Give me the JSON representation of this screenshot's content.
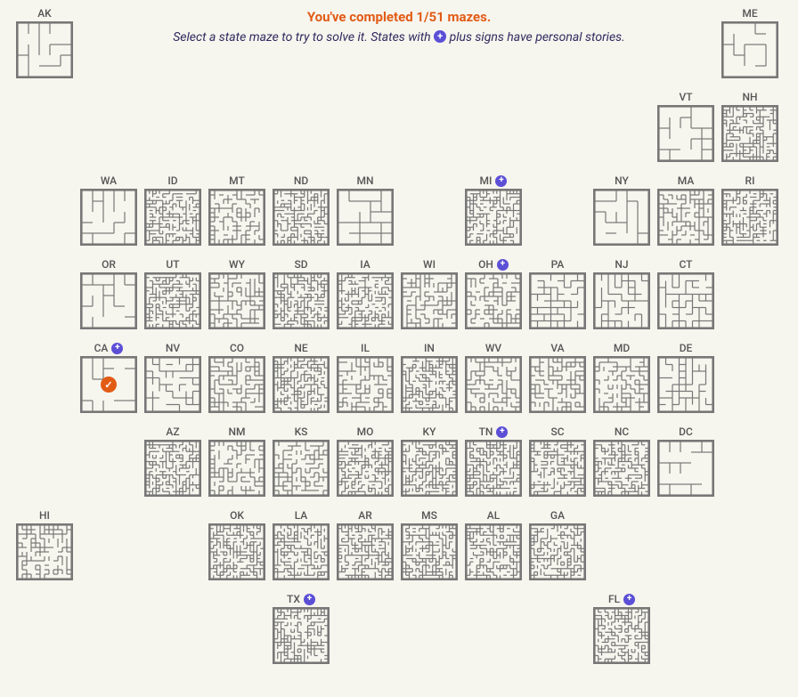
{
  "header": {
    "progress_text": "You've completed 1/51 mazes.",
    "progress_completed": 1,
    "progress_total": 51,
    "instruction_before": "Select a state maze to try to solve it. States with ",
    "instruction_after": " plus signs have personal stories."
  },
  "colors": {
    "background": "#f6f5ee",
    "progress": "#e25b15",
    "instruction": "#2f2a5e",
    "plus_badge": "#5b4fd6",
    "check_badge": "#e25b15",
    "maze_border": "#777777",
    "label": "#555555"
  },
  "maze_density_levels": {
    "sparse": 5,
    "medium": 8,
    "dense": 12,
    "very_dense": 16
  },
  "states": [
    {
      "code": "AK",
      "row": 1,
      "col": 1,
      "plus": false,
      "completed": false,
      "density": "sparse"
    },
    {
      "code": "ME",
      "row": 1,
      "col": 12,
      "plus": false,
      "completed": false,
      "density": "sparse"
    },
    {
      "code": "VT",
      "row": 2,
      "col": 11,
      "plus": false,
      "completed": false,
      "density": "sparse"
    },
    {
      "code": "NH",
      "row": 2,
      "col": 12,
      "plus": false,
      "completed": false,
      "density": "very_dense"
    },
    {
      "code": "WA",
      "row": 3,
      "col": 2,
      "plus": false,
      "completed": false,
      "density": "sparse"
    },
    {
      "code": "ID",
      "row": 3,
      "col": 3,
      "plus": false,
      "completed": false,
      "density": "very_dense"
    },
    {
      "code": "MT",
      "row": 3,
      "col": 4,
      "plus": false,
      "completed": false,
      "density": "dense"
    },
    {
      "code": "ND",
      "row": 3,
      "col": 5,
      "plus": false,
      "completed": false,
      "density": "very_dense"
    },
    {
      "code": "MN",
      "row": 3,
      "col": 6,
      "plus": false,
      "completed": false,
      "density": "sparse"
    },
    {
      "code": "MI",
      "row": 3,
      "col": 8,
      "plus": true,
      "completed": false,
      "density": "very_dense"
    },
    {
      "code": "NY",
      "row": 3,
      "col": 10,
      "plus": false,
      "completed": false,
      "density": "sparse"
    },
    {
      "code": "MA",
      "row": 3,
      "col": 11,
      "plus": false,
      "completed": false,
      "density": "dense"
    },
    {
      "code": "RI",
      "row": 3,
      "col": 12,
      "plus": false,
      "completed": false,
      "density": "very_dense"
    },
    {
      "code": "OR",
      "row": 4,
      "col": 2,
      "plus": false,
      "completed": false,
      "density": "sparse"
    },
    {
      "code": "UT",
      "row": 4,
      "col": 3,
      "plus": false,
      "completed": false,
      "density": "very_dense"
    },
    {
      "code": "WY",
      "row": 4,
      "col": 4,
      "plus": false,
      "completed": false,
      "density": "dense"
    },
    {
      "code": "SD",
      "row": 4,
      "col": 5,
      "plus": false,
      "completed": false,
      "density": "very_dense"
    },
    {
      "code": "IA",
      "row": 4,
      "col": 6,
      "plus": false,
      "completed": false,
      "density": "very_dense"
    },
    {
      "code": "WI",
      "row": 4,
      "col": 7,
      "plus": false,
      "completed": false,
      "density": "dense"
    },
    {
      "code": "OH",
      "row": 4,
      "col": 8,
      "plus": true,
      "completed": false,
      "density": "dense"
    },
    {
      "code": "PA",
      "row": 4,
      "col": 9,
      "plus": false,
      "completed": false,
      "density": "medium"
    },
    {
      "code": "NJ",
      "row": 4,
      "col": 10,
      "plus": false,
      "completed": false,
      "density": "medium"
    },
    {
      "code": "CT",
      "row": 4,
      "col": 11,
      "plus": false,
      "completed": false,
      "density": "medium"
    },
    {
      "code": "CA",
      "row": 5,
      "col": 2,
      "plus": true,
      "completed": true,
      "density": "sparse"
    },
    {
      "code": "NV",
      "row": 5,
      "col": 3,
      "plus": false,
      "completed": false,
      "density": "medium"
    },
    {
      "code": "CO",
      "row": 5,
      "col": 4,
      "plus": false,
      "completed": false,
      "density": "dense"
    },
    {
      "code": "NE",
      "row": 5,
      "col": 5,
      "plus": false,
      "completed": false,
      "density": "very_dense"
    },
    {
      "code": "IL",
      "row": 5,
      "col": 6,
      "plus": false,
      "completed": false,
      "density": "dense"
    },
    {
      "code": "IN",
      "row": 5,
      "col": 7,
      "plus": false,
      "completed": false,
      "density": "very_dense"
    },
    {
      "code": "WV",
      "row": 5,
      "col": 8,
      "plus": false,
      "completed": false,
      "density": "dense"
    },
    {
      "code": "VA",
      "row": 5,
      "col": 9,
      "plus": false,
      "completed": false,
      "density": "dense"
    },
    {
      "code": "MD",
      "row": 5,
      "col": 10,
      "plus": false,
      "completed": false,
      "density": "dense"
    },
    {
      "code": "DE",
      "row": 5,
      "col": 11,
      "plus": false,
      "completed": false,
      "density": "medium"
    },
    {
      "code": "AZ",
      "row": 6,
      "col": 3,
      "plus": false,
      "completed": false,
      "density": "very_dense"
    },
    {
      "code": "NM",
      "row": 6,
      "col": 4,
      "plus": false,
      "completed": false,
      "density": "dense"
    },
    {
      "code": "KS",
      "row": 6,
      "col": 5,
      "plus": false,
      "completed": false,
      "density": "dense"
    },
    {
      "code": "MO",
      "row": 6,
      "col": 6,
      "plus": false,
      "completed": false,
      "density": "very_dense"
    },
    {
      "code": "KY",
      "row": 6,
      "col": 7,
      "plus": false,
      "completed": false,
      "density": "very_dense"
    },
    {
      "code": "TN",
      "row": 6,
      "col": 8,
      "plus": true,
      "completed": false,
      "density": "very_dense"
    },
    {
      "code": "SC",
      "row": 6,
      "col": 9,
      "plus": false,
      "completed": false,
      "density": "very_dense"
    },
    {
      "code": "NC",
      "row": 6,
      "col": 10,
      "plus": false,
      "completed": false,
      "density": "very_dense"
    },
    {
      "code": "DC",
      "row": 6,
      "col": 11,
      "plus": false,
      "completed": false,
      "density": "sparse"
    },
    {
      "code": "HI",
      "row": 7,
      "col": 1,
      "plus": false,
      "completed": false,
      "density": "dense"
    },
    {
      "code": "OK",
      "row": 7,
      "col": 4,
      "plus": false,
      "completed": false,
      "density": "very_dense"
    },
    {
      "code": "LA",
      "row": 7,
      "col": 5,
      "plus": false,
      "completed": false,
      "density": "very_dense"
    },
    {
      "code": "AR",
      "row": 7,
      "col": 6,
      "plus": false,
      "completed": false,
      "density": "very_dense"
    },
    {
      "code": "MS",
      "row": 7,
      "col": 7,
      "plus": false,
      "completed": false,
      "density": "very_dense"
    },
    {
      "code": "AL",
      "row": 7,
      "col": 8,
      "plus": false,
      "completed": false,
      "density": "very_dense"
    },
    {
      "code": "GA",
      "row": 7,
      "col": 9,
      "plus": false,
      "completed": false,
      "density": "very_dense"
    },
    {
      "code": "TX",
      "row": 8,
      "col": 5,
      "plus": true,
      "completed": false,
      "density": "very_dense"
    },
    {
      "code": "FL",
      "row": 8,
      "col": 10,
      "plus": true,
      "completed": false,
      "density": "very_dense"
    }
  ]
}
